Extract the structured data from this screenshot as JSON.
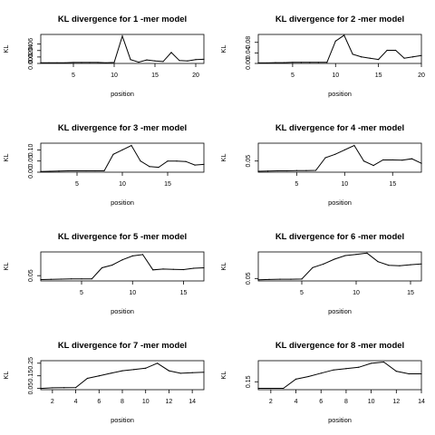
{
  "chart_data": [
    {
      "type": "line",
      "title": "KL divergence for 1 -mer model",
      "xlabel": "position",
      "ylabel": "KL",
      "xlim": [
        1,
        21
      ],
      "ylim": [
        0,
        0.09
      ],
      "xticks": [
        5,
        10,
        15,
        20
      ],
      "yticks": [
        0.0,
        0.02,
        0.04,
        0.06
      ],
      "ytick_labels": [
        "0.00",
        "0.02",
        "0.04",
        "0.06"
      ],
      "x": [
        1,
        2,
        3,
        4,
        5,
        6,
        7,
        8,
        9,
        10,
        11,
        12,
        13,
        14,
        15,
        16,
        17,
        18,
        19,
        20,
        21
      ],
      "y": [
        0.002,
        0.002,
        0.002,
        0.002,
        0.003,
        0.003,
        0.003,
        0.003,
        0.002,
        0.003,
        0.085,
        0.012,
        0.004,
        0.011,
        0.008,
        0.006,
        0.034,
        0.009,
        0.008,
        0.012,
        0.013
      ]
    },
    {
      "type": "line",
      "title": "KL divergence for 2 -mer model",
      "xlabel": "position",
      "ylabel": "KL",
      "xlim": [
        1,
        20
      ],
      "ylim": [
        0,
        0.11
      ],
      "xticks": [
        5,
        10,
        15,
        20
      ],
      "yticks": [
        0.0,
        0.04,
        0.08
      ],
      "ytick_labels": [
        "0.00",
        "0.04",
        "0.08"
      ],
      "x": [
        1,
        2,
        3,
        4,
        5,
        6,
        7,
        8,
        9,
        10,
        11,
        12,
        13,
        14,
        15,
        16,
        17,
        18,
        19,
        20
      ],
      "y": [
        0.002,
        0.002,
        0.003,
        0.003,
        0.004,
        0.004,
        0.004,
        0.004,
        0.004,
        0.085,
        0.107,
        0.035,
        0.025,
        0.02,
        0.015,
        0.05,
        0.05,
        0.02,
        0.025,
        0.03
      ]
    },
    {
      "type": "line",
      "title": "KL divergence for 3 -mer model",
      "xlabel": "position",
      "ylabel": "KL",
      "xlim": [
        1,
        19
      ],
      "ylim": [
        0,
        0.13
      ],
      "xticks": [
        5,
        10,
        15
      ],
      "yticks": [
        0.0,
        0.05,
        0.1
      ],
      "ytick_labels": [
        "0.00",
        "0.05",
        "0.10"
      ],
      "x": [
        1,
        2,
        3,
        4,
        5,
        6,
        7,
        8,
        9,
        10,
        11,
        12,
        13,
        14,
        15,
        16,
        17,
        18,
        19
      ],
      "y": [
        0.003,
        0.004,
        0.005,
        0.006,
        0.006,
        0.006,
        0.006,
        0.006,
        0.08,
        0.1,
        0.12,
        0.05,
        0.025,
        0.022,
        0.05,
        0.05,
        0.048,
        0.032,
        0.035
      ]
    },
    {
      "type": "line",
      "title": "KL divergence for 4 -mer model",
      "xlabel": "position",
      "ylabel": "KL",
      "xlim": [
        1,
        18
      ],
      "ylim": [
        0,
        0.13
      ],
      "xticks": [
        5,
        10,
        15
      ],
      "yticks": [
        0.05
      ],
      "ytick_labels": [
        "0.05"
      ],
      "x": [
        1,
        2,
        3,
        4,
        5,
        6,
        7,
        8,
        9,
        10,
        11,
        12,
        13,
        14,
        15,
        16,
        17,
        18
      ],
      "y": [
        0.004,
        0.005,
        0.006,
        0.006,
        0.007,
        0.007,
        0.008,
        0.065,
        0.08,
        0.1,
        0.12,
        0.05,
        0.03,
        0.055,
        0.055,
        0.054,
        0.06,
        0.04
      ]
    },
    {
      "type": "line",
      "title": "KL divergence for 5 -mer model",
      "xlabel": "position",
      "ylabel": "KL",
      "xlim": [
        1,
        17
      ],
      "ylim": [
        0.03,
        0.14
      ],
      "xticks": [
        5,
        10,
        15
      ],
      "yticks": [
        0.05
      ],
      "ytick_labels": [
        "0.05"
      ],
      "x": [
        1,
        2,
        3,
        4,
        5,
        6,
        7,
        8,
        9,
        10,
        11,
        12,
        13,
        14,
        15,
        16,
        17
      ],
      "y": [
        0.035,
        0.036,
        0.037,
        0.038,
        0.038,
        0.038,
        0.08,
        0.09,
        0.11,
        0.125,
        0.13,
        0.072,
        0.075,
        0.074,
        0.073,
        0.078,
        0.08
      ]
    },
    {
      "type": "line",
      "title": "KL divergence for 6 -mer model",
      "xlabel": "position",
      "ylabel": "KL",
      "xlim": [
        1,
        16
      ],
      "ylim": [
        0.04,
        0.16
      ],
      "xticks": [
        5,
        10,
        15
      ],
      "yticks": [
        0.05
      ],
      "ytick_labels": [
        "0.05"
      ],
      "x": [
        1,
        2,
        3,
        4,
        5,
        6,
        7,
        8,
        9,
        10,
        11,
        12,
        13,
        14,
        15,
        16
      ],
      "y": [
        0.045,
        0.046,
        0.047,
        0.047,
        0.048,
        0.095,
        0.11,
        0.13,
        0.145,
        0.15,
        0.155,
        0.12,
        0.105,
        0.103,
        0.107,
        0.11
      ]
    },
    {
      "type": "line",
      "title": "KL divergence for 7 -mer model",
      "xlabel": "position",
      "ylabel": "KL",
      "xlim": [
        1,
        15
      ],
      "ylim": [
        0.04,
        0.27
      ],
      "xticks": [
        2,
        4,
        6,
        8,
        10,
        12,
        14
      ],
      "yticks": [
        0.05,
        0.15,
        0.25
      ],
      "ytick_labels": [
        "0.05",
        "0.15",
        "0.25"
      ],
      "x": [
        1,
        2,
        3,
        4,
        5,
        6,
        7,
        8,
        9,
        10,
        11,
        12,
        13,
        14,
        15
      ],
      "y": [
        0.05,
        0.055,
        0.056,
        0.057,
        0.13,
        0.15,
        0.17,
        0.19,
        0.2,
        0.21,
        0.25,
        0.19,
        0.17,
        0.175,
        0.178
      ]
    },
    {
      "type": "line",
      "title": "KL divergence for 8 -mer model",
      "xlabel": "position",
      "ylabel": "KL",
      "xlim": [
        1,
        14
      ],
      "ylim": [
        0.09,
        0.31
      ],
      "xticks": [
        2,
        4,
        6,
        8,
        10,
        12,
        14
      ],
      "yticks": [
        0.15
      ],
      "ytick_labels": [
        "0.15"
      ],
      "x": [
        1,
        2,
        3,
        4,
        5,
        6,
        7,
        8,
        9,
        10,
        11,
        12,
        13,
        14
      ],
      "y": [
        0.1,
        0.1,
        0.1,
        0.17,
        0.19,
        0.215,
        0.24,
        0.25,
        0.26,
        0.29,
        0.3,
        0.23,
        0.21,
        0.21
      ]
    }
  ]
}
